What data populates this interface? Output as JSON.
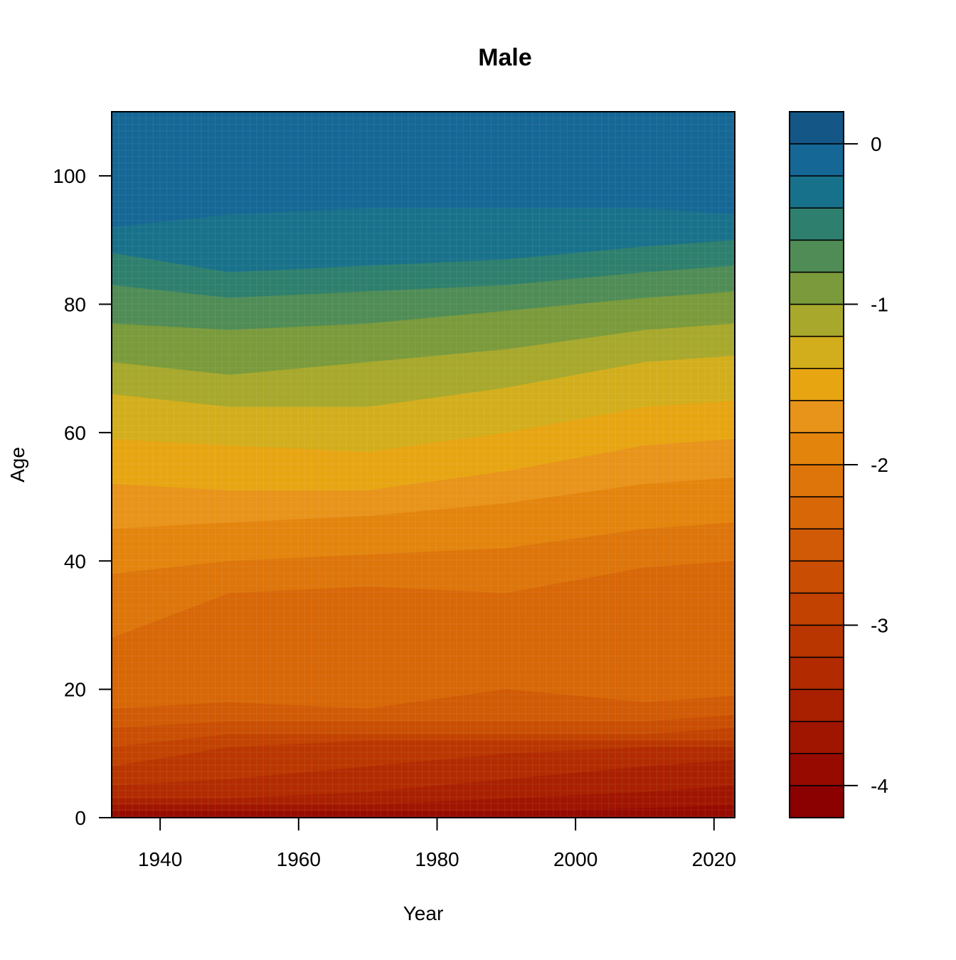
{
  "chart_data": {
    "type": "heatmap",
    "title": "Male",
    "xlabel": "Year",
    "ylabel": "Age",
    "xlim": [
      1933,
      2023
    ],
    "ylim": [
      0,
      110
    ],
    "x_ticks": [
      1940,
      1960,
      1980,
      2000,
      2020
    ],
    "y_ticks": [
      0,
      20,
      40,
      60,
      80,
      100
    ],
    "legend_position": "right",
    "legend": {
      "range": [
        -4.2,
        0.2
      ],
      "ticks": [
        0,
        -1,
        -2,
        -3,
        -4
      ],
      "levels": [
        -4.2,
        -4.0,
        -3.8,
        -3.6,
        -3.4,
        -3.2,
        -3.0,
        -2.8,
        -2.6,
        -2.4,
        -2.2,
        -2.0,
        -1.8,
        -1.6,
        -1.4,
        -1.2,
        -1.0,
        -0.8,
        -0.6,
        -0.4,
        -0.2,
        0.0,
        0.2
      ],
      "colors": [
        "#8b0000",
        "#960a00",
        "#a01500",
        "#a92000",
        "#b22b00",
        "#ba3600",
        "#c24201",
        "#c94e03",
        "#d05a05",
        "#d76707",
        "#dd750a",
        "#e3840d",
        "#e8931a",
        "#e7a512",
        "#d3ae1c",
        "#a7a82c",
        "#7a9a3b",
        "#508c55",
        "#2e7f6d",
        "#18718a",
        "#156795",
        "#145686",
        "#0f4174"
      ]
    },
    "contours": [
      {
        "level": -0.2,
        "ages": [
          98,
          100,
          101,
          101,
          101,
          100
        ]
      },
      {
        "level": -0.4,
        "ages": [
          92,
          94,
          95,
          95,
          95,
          94
        ]
      },
      {
        "level": -0.6,
        "ages": [
          88,
          85,
          86,
          87,
          89,
          90
        ]
      },
      {
        "level": -0.8,
        "ages": [
          83,
          81,
          82,
          83,
          85,
          86
        ]
      },
      {
        "level": -1.0,
        "ages": [
          77,
          76,
          77,
          79,
          81,
          82
        ]
      },
      {
        "level": -1.2,
        "ages": [
          71,
          69,
          71,
          73,
          76,
          77
        ]
      },
      {
        "level": -1.4,
        "ages": [
          66,
          64,
          64,
          67,
          71,
          72
        ]
      },
      {
        "level": -1.6,
        "ages": [
          59,
          58,
          57,
          60,
          64,
          65
        ]
      },
      {
        "level": -1.8,
        "ages": [
          52,
          51,
          51,
          54,
          58,
          59
        ]
      },
      {
        "level": -2.0,
        "ages": [
          45,
          46,
          47,
          49,
          52,
          53
        ]
      },
      {
        "level": -2.2,
        "ages": [
          38,
          40,
          41,
          42,
          45,
          46
        ]
      },
      {
        "level": -2.4,
        "ages": [
          28,
          35,
          36,
          35,
          39,
          40
        ]
      },
      {
        "level": -2.6,
        "ages": [
          17,
          18,
          17,
          20,
          18,
          19
        ]
      },
      {
        "level": -2.8,
        "ages": [
          14,
          15,
          15,
          15,
          15,
          16
        ]
      },
      {
        "level": -3.0,
        "ages": [
          11,
          13,
          13,
          13,
          13,
          14
        ]
      },
      {
        "level": -3.2,
        "ages": [
          8,
          11,
          12,
          12,
          12,
          12
        ]
      },
      {
        "level": -3.4,
        "ages": [
          5,
          6,
          8,
          10,
          11,
          11
        ]
      },
      {
        "level": -3.6,
        "ages": [
          3,
          3,
          4,
          6,
          8,
          9
        ]
      },
      {
        "level": -3.8,
        "ages": [
          2,
          2,
          2,
          3,
          4,
          5
        ]
      },
      {
        "level": -4.0,
        "ages": [
          1,
          1,
          1,
          1,
          1.5,
          2
        ]
      }
    ],
    "contour_years": [
      1933,
      1950,
      1970,
      1990,
      2010,
      2023
    ]
  }
}
